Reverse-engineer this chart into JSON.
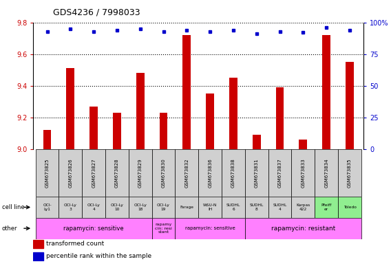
{
  "title": "GDS4236 / 7998033",
  "samples": [
    "GSM673825",
    "GSM673826",
    "GSM673827",
    "GSM673828",
    "GSM673829",
    "GSM673830",
    "GSM673832",
    "GSM673836",
    "GSM673838",
    "GSM673831",
    "GSM673837",
    "GSM673833",
    "GSM673834",
    "GSM673835"
  ],
  "bar_values": [
    9.12,
    9.51,
    9.27,
    9.23,
    9.48,
    9.23,
    9.72,
    9.35,
    9.45,
    9.09,
    9.39,
    9.06,
    9.72,
    9.55
  ],
  "dot_values": [
    93,
    95,
    93,
    94,
    95,
    93,
    94,
    93,
    94,
    91,
    93,
    92,
    96,
    94
  ],
  "bar_color": "#cc0000",
  "dot_color": "#0000cc",
  "ylim_left": [
    9.0,
    9.8
  ],
  "ylim_right": [
    0,
    100
  ],
  "yticks_left": [
    9.0,
    9.2,
    9.4,
    9.6,
    9.8
  ],
  "yticks_right": [
    0,
    25,
    50,
    75,
    100
  ],
  "cell_lines": [
    "OCI-\nLy1",
    "OCI-Ly\n3",
    "OCI-Ly\n4",
    "OCI-Ly\n10",
    "OCI-Ly\n18",
    "OCI-Ly\n19",
    "Farage",
    "WSU-N\nIH",
    "SUDHL\n6",
    "SUDHL\n8",
    "SUDHL\n4",
    "Karpas\n422",
    "Pfeiff\ner",
    "Toledo"
  ],
  "cell_line_bg": [
    "#d0d0d0",
    "#d0d0d0",
    "#d0d0d0",
    "#d0d0d0",
    "#d0d0d0",
    "#d0d0d0",
    "#d0d0d0",
    "#d0d0d0",
    "#d0d0d0",
    "#d0d0d0",
    "#d0d0d0",
    "#d0d0d0",
    "#90ee90",
    "#90ee90"
  ],
  "row_label_cell_line": "cell line",
  "row_label_other": "other",
  "legend_bar": "transformed count",
  "legend_dot": "percentile rank within the sample",
  "bg_color": "#ffffff",
  "tick_label_color_left": "#cc0000",
  "tick_label_color_right": "#0000cc",
  "sample_bg_color": "#d0d0d0",
  "green_bg_color": "#90ee90",
  "pink_bg_color": "#ff80ff",
  "rapa_groups": [
    {
      "label": "rapamycin: sensitive",
      "start": 0,
      "end": 4,
      "fontsize": 6.0
    },
    {
      "label": "rapamy\ncin: resi\nstant",
      "start": 5,
      "end": 5,
      "fontsize": 4.5
    },
    {
      "label": "rapamycin: sensitive",
      "start": 6,
      "end": 8,
      "fontsize": 5.0
    },
    {
      "label": "rapamycin: resistant",
      "start": 9,
      "end": 13,
      "fontsize": 6.5
    }
  ]
}
